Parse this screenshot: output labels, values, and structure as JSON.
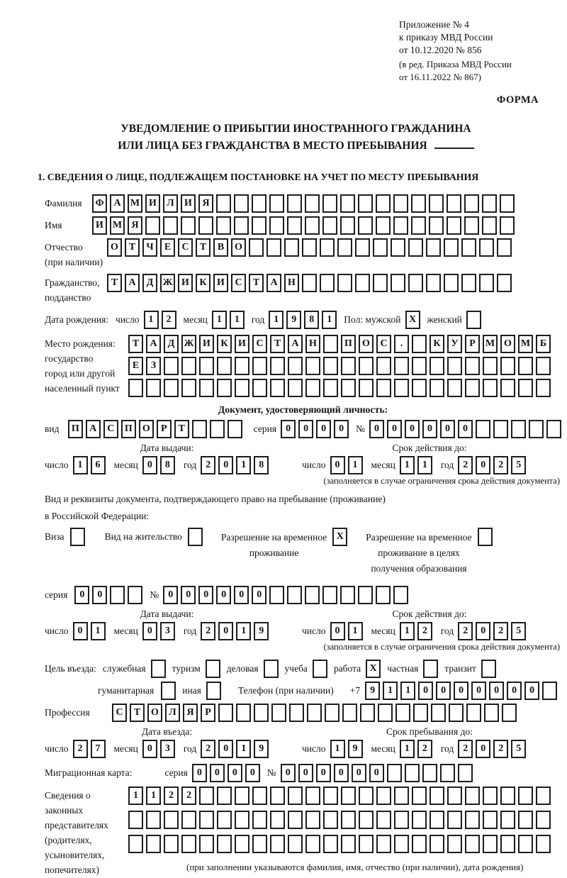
{
  "header": {
    "line1": "Приложение № 4",
    "line2": "к приказу МВД России",
    "line3": "от 10.12.2020 № 856",
    "line4": "(в ред. Приказа МВД России",
    "line5": "от 16.11.2022 № 867)",
    "forma": "ФОРМА"
  },
  "title": {
    "line1": "УВЕДОМЛЕНИЕ О ПРИБЫТИИ ИНОСТРАННОГО ГРАЖДАНИНА",
    "line2": "ИЛИ ЛИЦА БЕЗ ГРАЖДАНСТВА В МЕСТО ПРЕБЫВАНИЯ"
  },
  "section1_title": "1. СВЕДЕНИЯ О ЛИЦЕ, ПОДЛЕЖАЩЕМ ПОСТАНОВКЕ НА УЧЕТ ПО МЕСТУ ПРЕБЫВАНИЯ",
  "labels": {
    "surname": "Фамилия",
    "name": "Имя",
    "patronymic_1": "Отчество",
    "patronymic_2": "(при наличии)",
    "citizenship_1": "Гражданство,",
    "citizenship_2": "подданство",
    "birth_date": "Дата рождения:",
    "day": "число",
    "month": "месяц",
    "year": "год",
    "sex_male": "Пол: мужской",
    "sex_female": "женский",
    "birthplace_1": "Место рождения:",
    "birthplace_2": "государство",
    "birthplace_3": "город или другой",
    "birthplace_4": "населенный пункт",
    "id_doc_header": "Документ, удостоверяющий личность:",
    "doc_type": "вид",
    "series": "серия",
    "number": "№",
    "issue_date": "Дата выдачи:",
    "valid_until": "Срок действия до:",
    "valid_note": "(заполняется в случае ограничения срока действия документа)",
    "right_doc_1": "Вид и реквизиты документа, подтверждающего право на пребывание (проживание)",
    "right_doc_2": "в Российской Федерации:",
    "visa": "Виза",
    "residence_permit": "Вид на жительство",
    "temp_permit_1": "Разрешение на временное",
    "temp_permit_2": "проживание",
    "temp_edu_1": "Разрешение на временное",
    "temp_edu_2": "проживание в целях",
    "temp_edu_3": "получения образования",
    "purpose": "Цель въезда:",
    "purpose_official": "служебная",
    "purpose_tourism": "туризм",
    "purpose_business": "деловая",
    "purpose_study": "учеба",
    "purpose_work": "работа",
    "purpose_private": "частная",
    "purpose_transit": "транзит",
    "purpose_humanitarian": "гуманитарная",
    "purpose_other": "иная",
    "phone": "Телефон (при наличии)",
    "phone_prefix": "+7",
    "profession": "Профессия",
    "entry_date": "Дата въезда:",
    "stay_until": "Срок пребывания до:",
    "migcard": "Миграционная карта:",
    "legal_1": "Сведения о",
    "legal_2": "законных",
    "legal_3": "представителях",
    "legal_4": "(родителях,",
    "legal_5": "усыновителях,",
    "legal_6": "попечителях)",
    "legal_note": "(при заполнении указываются фамилия, имя, отчество (при наличии), дата рождения)"
  },
  "fields": {
    "surname": "ФАМИЛИЯ",
    "name": "ИМЯ",
    "patronymic": "ОТЧЕСТВО",
    "citizenship": "ТАДЖИКИСТАН",
    "birthplace_line1": "ТАДЖИКИСТАН ПОС. КУРМОМБ",
    "birthplace_line2": "ЕЗ",
    "birthplace_line3": "",
    "id_doc_type": "ПАСПОРТ",
    "id_doc_series": "0000",
    "id_doc_number": "000000",
    "permit_series": "00",
    "permit_number": "000000",
    "phone": "9110000000",
    "profession": "СТОЛЯР",
    "migcard_series": "0000",
    "migcard_number": "000000",
    "legal_line1": "1122",
    "legal_line2": "",
    "legal_line3": ""
  },
  "dates": {
    "birth": {
      "day": "12",
      "month": "11",
      "year": "1981"
    },
    "id_issue": {
      "day": "16",
      "month": "08",
      "year": "2018"
    },
    "id_valid": {
      "day": "01",
      "month": "11",
      "year": "2025"
    },
    "permit_issue": {
      "day": "01",
      "month": "03",
      "year": "2019"
    },
    "permit_valid": {
      "day": "01",
      "month": "12",
      "year": "2025"
    },
    "entry": {
      "day": "27",
      "month": "03",
      "year": "2019"
    },
    "stay": {
      "day": "19",
      "month": "12",
      "year": "2025"
    }
  },
  "checks": {
    "sex_male": "X",
    "sex_female": "",
    "visa": "",
    "residence": "",
    "temp_residence": "X",
    "temp_residence_edu": "",
    "purpose_official": "",
    "purpose_tourism": "",
    "purpose_business": "",
    "purpose_study": "",
    "purpose_work": "X",
    "purpose_private": "",
    "purpose_transit": "",
    "purpose_humanitarian": "",
    "purpose_other": ""
  }
}
